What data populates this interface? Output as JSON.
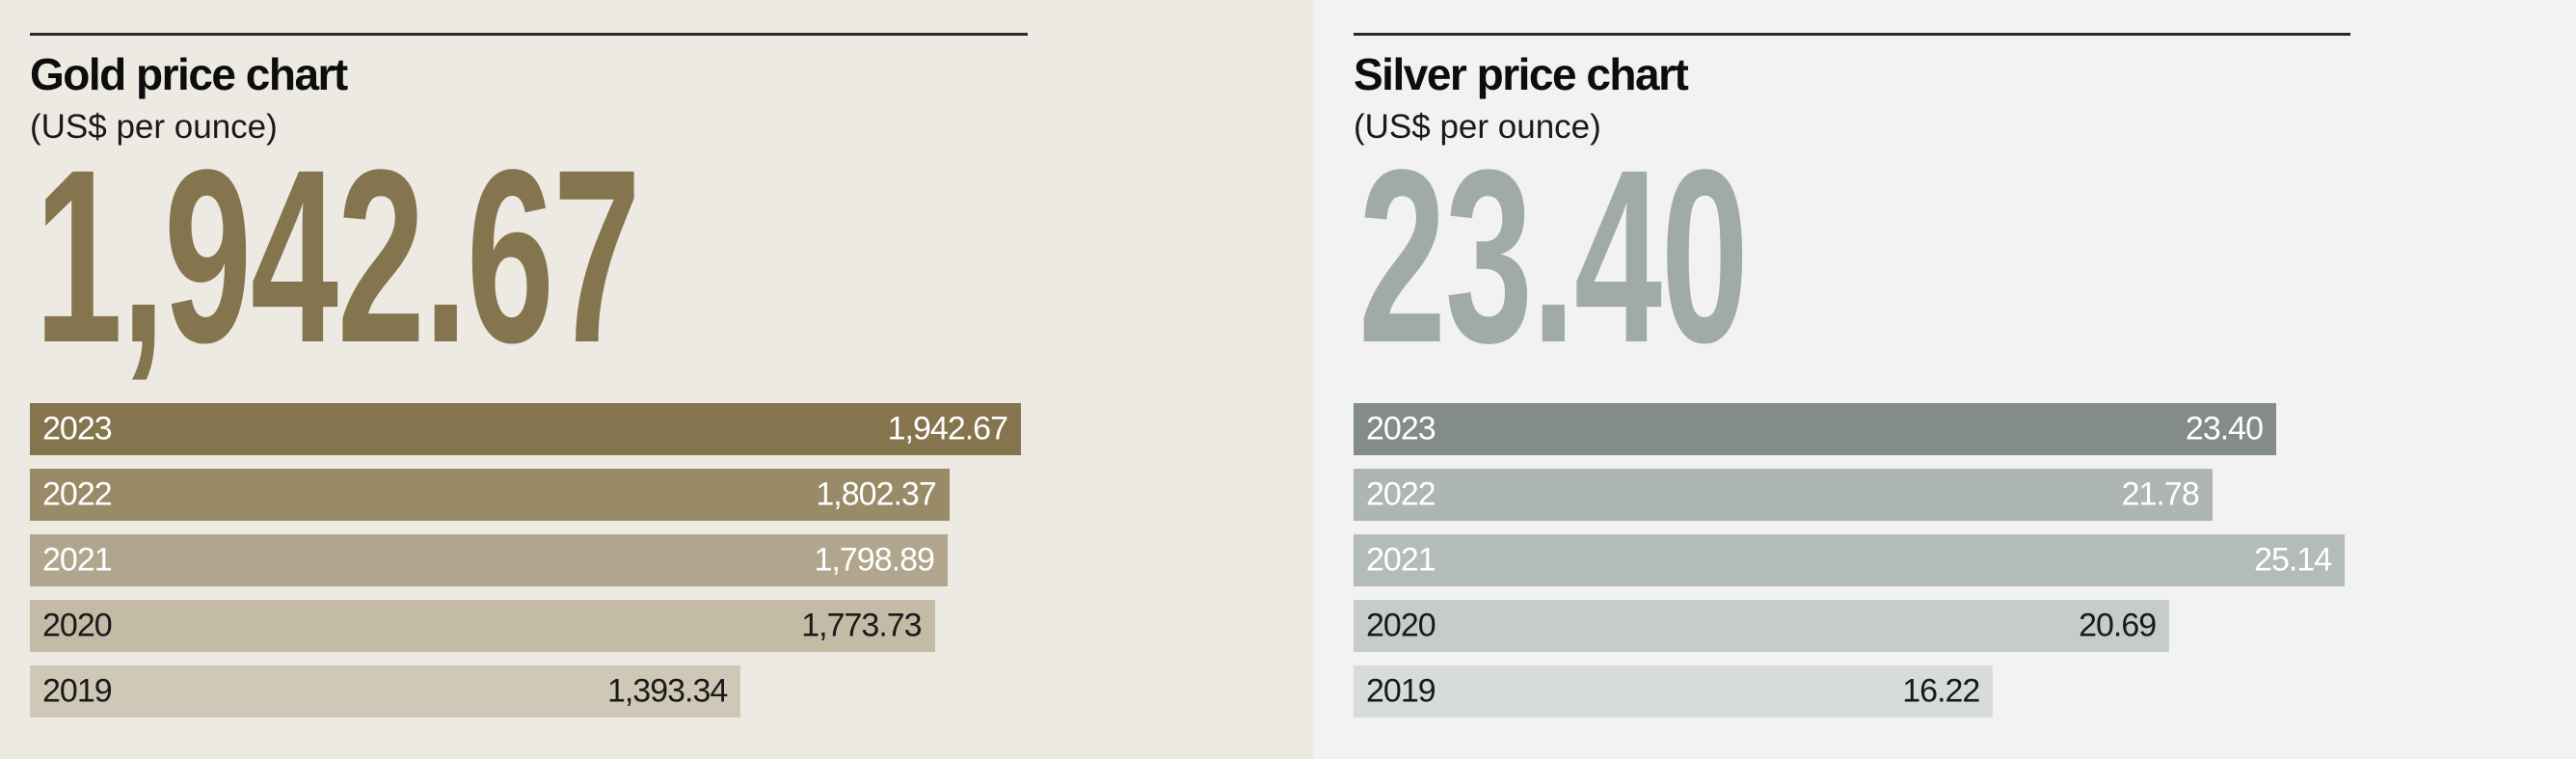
{
  "chart_data": [
    {
      "type": "bar",
      "orientation": "horizontal",
      "title": "Gold price chart",
      "subtitle": "(US$ per ounce)",
      "headline": "1,942.67",
      "headline_color": "#85754e",
      "categories": [
        "2023",
        "2022",
        "2021",
        "2020",
        "2019"
      ],
      "values": [
        1942.67,
        1802.37,
        1798.89,
        1773.73,
        1393.34
      ],
      "value_labels": [
        "1,942.67",
        "1,802.37",
        "1,798.89",
        "1,773.73",
        "1,393.34"
      ],
      "bar_colors": [
        "#85754e",
        "#9a8b68",
        "#b1a68d",
        "#c4bba6",
        "#d0c8b7"
      ],
      "label_colors": [
        "#ffffff",
        "#ffffff",
        "#ffffff",
        "#1a1a1a",
        "#1a1a1a"
      ],
      "xlim": [
        0,
        1942.67
      ],
      "grid": false
    },
    {
      "type": "bar",
      "orientation": "horizontal",
      "title": "Silver price chart",
      "subtitle": "(US$ per ounce)",
      "headline": "23.40",
      "headline_color": "#a0aba7",
      "categories": [
        "2023",
        "2022",
        "2021",
        "2020",
        "2019"
      ],
      "values": [
        23.4,
        21.78,
        25.14,
        20.69,
        16.22
      ],
      "value_labels": [
        "23.40",
        "21.78",
        "25.14",
        "20.69",
        "16.22"
      ],
      "bar_colors": [
        "#848c89",
        "#aeb6b3",
        "#b4bcb9",
        "#c6cccb",
        "#d7dbdb"
      ],
      "label_colors": [
        "#ffffff",
        "#ffffff",
        "#ffffff",
        "#1a1a1a",
        "#1a1a1a"
      ],
      "xlim": [
        0,
        23.4
      ],
      "grid": false
    }
  ]
}
